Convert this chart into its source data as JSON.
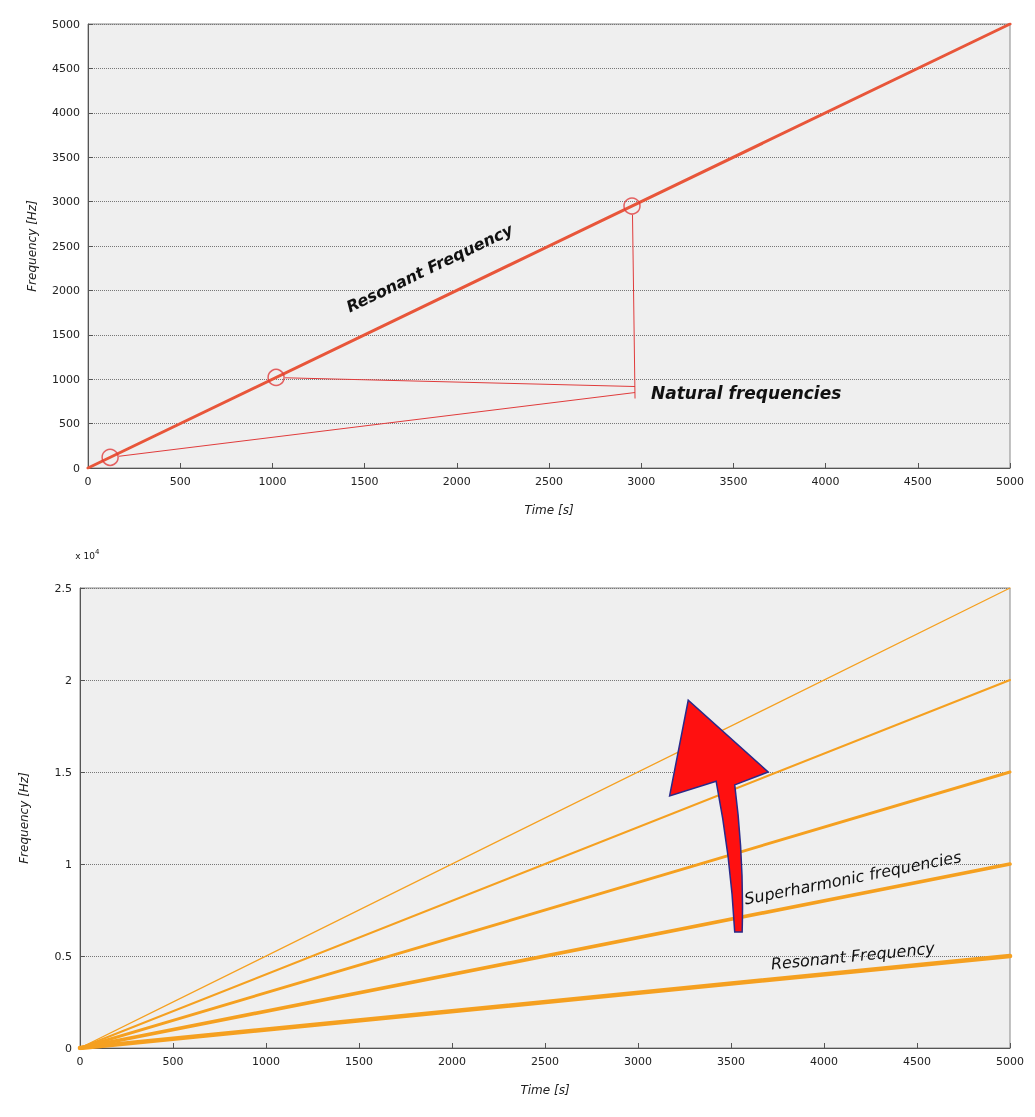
{
  "chart_data": [
    {
      "type": "line",
      "xlabel": "Time [s]",
      "ylabel": "Frequency [Hz]",
      "xlim": [
        0,
        5000
      ],
      "ylim": [
        0,
        5000
      ],
      "xticks": [
        0,
        500,
        1000,
        1500,
        2000,
        2500,
        3000,
        3500,
        4000,
        4500,
        5000
      ],
      "yticks": [
        0,
        500,
        1000,
        1500,
        2000,
        2500,
        3000,
        3500,
        4000,
        4500,
        5000
      ],
      "grid": "y",
      "marker": "none",
      "series": [
        {
          "color": "#e8563a",
          "x": [
            0,
            5000
          ],
          "values": [
            0,
            5000
          ]
        },
        {
          "type": "scatter",
          "marker": "circle",
          "color": "#e03c3c",
          "x": [
            120,
            1020,
            2950
          ],
          "values": [
            120,
            1020,
            2950
          ]
        }
      ],
      "annotations": [
        "Resonant Frequency",
        {
          "text": "Natural frequencies",
          "x": 1020,
          "y": 1020
        }
      ]
    },
    {
      "type": "line",
      "xlabel": "Time [s]",
      "ylabel": "Frequency [Hz]",
      "xlim": [
        0,
        5000
      ],
      "ylim": [
        0,
        2.5
      ],
      "xticks": [
        0,
        500,
        1000,
        1500,
        2000,
        2500,
        3000,
        3500,
        4000,
        4500,
        5000
      ],
      "yticks": [
        0,
        0.5,
        1,
        1.5,
        2,
        2.5
      ],
      "grid": "y",
      "marker": "none",
      "series": [
        {
          "color": "#f5a020",
          "x": [
            0,
            5000
          ],
          "values": [
            0,
            0.5
          ]
        },
        {
          "color": "#f5a020",
          "x": [
            0,
            5000
          ],
          "values": [
            0,
            1
          ]
        },
        {
          "color": "#f5a020",
          "x": [
            0,
            5000
          ],
          "values": [
            0,
            1.5
          ]
        },
        {
          "color": "#f5a020",
          "x": [
            0,
            5000
          ],
          "values": [
            0,
            2
          ]
        },
        {
          "color": "#f5a020",
          "x": [
            0,
            5000
          ],
          "values": [
            0,
            2.5
          ]
        }
      ],
      "annotations": [
        "x 10$^{4}$",
        "Superharmonic frequencies",
        "Resonant Frequency"
      ]
    }
  ]
}
